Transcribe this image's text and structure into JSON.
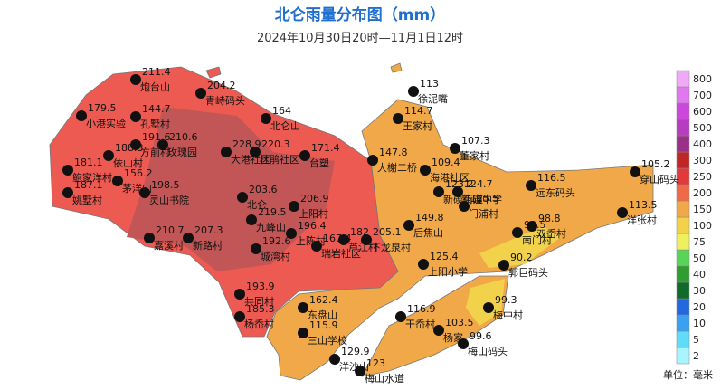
{
  "title": "北仑雨量分布图（mm）",
  "subtitle": "2024年10月30日20时—11月1日12时",
  "unit": "单位：毫米",
  "legend": {
    "levels": [
      2,
      5,
      10,
      20,
      30,
      40,
      50,
      75,
      100,
      150,
      200,
      250,
      300,
      400,
      500,
      600,
      700,
      800
    ],
    "colors": [
      "#a8f4ff",
      "#60dcf8",
      "#3aa0f0",
      "#2468e0",
      "#106a2a",
      "#2e9e30",
      "#58d458",
      "#eef060",
      "#f2d24a",
      "#f0a848",
      "#f06a48",
      "#e23a3a",
      "#c02626",
      "#9a3088",
      "#b83cc0",
      "#cc48dc",
      "#e078f0",
      "#f0a8f8"
    ]
  },
  "stations": [
    {
      "name": "炮台山",
      "value": 211.4
    },
    {
      "name": "青峙码头",
      "value": 204.2
    },
    {
      "name": "北仑山",
      "value": 164
    },
    {
      "name": "徐泥嘴",
      "value": 113
    },
    {
      "name": "小港实验",
      "value": 179.5
    },
    {
      "name": "孔墅村",
      "value": 144.7
    },
    {
      "name": "王家村",
      "value": 114.7
    },
    {
      "name": "董家村",
      "value": 107.3
    },
    {
      "name": "依山村",
      "value": 188.3
    },
    {
      "name": "方前村",
      "value": 191.6
    },
    {
      "name": "玫瑰园",
      "value": 210.6
    },
    {
      "name": "大港社区",
      "value": 228.9
    },
    {
      "name": "杜鹃社区",
      "value": 220.3
    },
    {
      "name": "台塑",
      "value": 171.4
    },
    {
      "name": "大榭二桥",
      "value": 147.8
    },
    {
      "name": "海港社区",
      "value": 109.4
    },
    {
      "name": "鲍家洋村",
      "value": 181.1
    },
    {
      "name": "茅洋山",
      "value": 156.2
    },
    {
      "name": "姚墅村",
      "value": 187.1
    },
    {
      "name": "灵山书院",
      "value": 198.5
    },
    {
      "name": "北仑",
      "value": 203.6
    },
    {
      "name": "上阳村",
      "value": 206.9
    },
    {
      "name": "新碶街道",
      "value": 123.2
    },
    {
      "name": "新碶中学",
      "value": 124.7
    },
    {
      "name": "门浦村",
      "value": 125.5
    },
    {
      "name": "远东码头",
      "value": 116.5
    },
    {
      "name": "穿山码头",
      "value": 105.2
    },
    {
      "name": "洋张村",
      "value": 113.5
    },
    {
      "name": "九峰山",
      "value": 219.5
    },
    {
      "name": "上陈村",
      "value": 196.4
    },
    {
      "name": "瑞岩社区",
      "value": 167.4
    },
    {
      "name": "芦江村",
      "value": 182.0
    },
    {
      "name": "下龙泉村",
      "value": 205.1
    },
    {
      "name": "后焦山",
      "value": 149.8
    },
    {
      "name": "双岙村",
      "value": 98.8
    },
    {
      "name": "南门村",
      "value": 99.5
    },
    {
      "name": "嘉溪村",
      "value": 210.7
    },
    {
      "name": "新路村",
      "value": 207.3
    },
    {
      "name": "城湾村",
      "value": 192.6
    },
    {
      "name": "上阳小学",
      "value": 125.4
    },
    {
      "name": "郭巨码头",
      "value": 90.2
    },
    {
      "name": "共同村",
      "value": 193.9
    },
    {
      "name": "东盘山",
      "value": 162.4
    },
    {
      "name": "杨岙村",
      "value": 185.3
    },
    {
      "name": "梅中村",
      "value": 99.3
    },
    {
      "name": "干岙村",
      "value": 116.9
    },
    {
      "name": "三山学校",
      "value": 115.9
    },
    {
      "name": "杨家",
      "value": 103.5
    },
    {
      "name": "梅山码头",
      "value": 99.6
    },
    {
      "name": "洋沙山",
      "value": 129.9
    },
    {
      "name": "梅山水道",
      "value": 123
    }
  ]
}
